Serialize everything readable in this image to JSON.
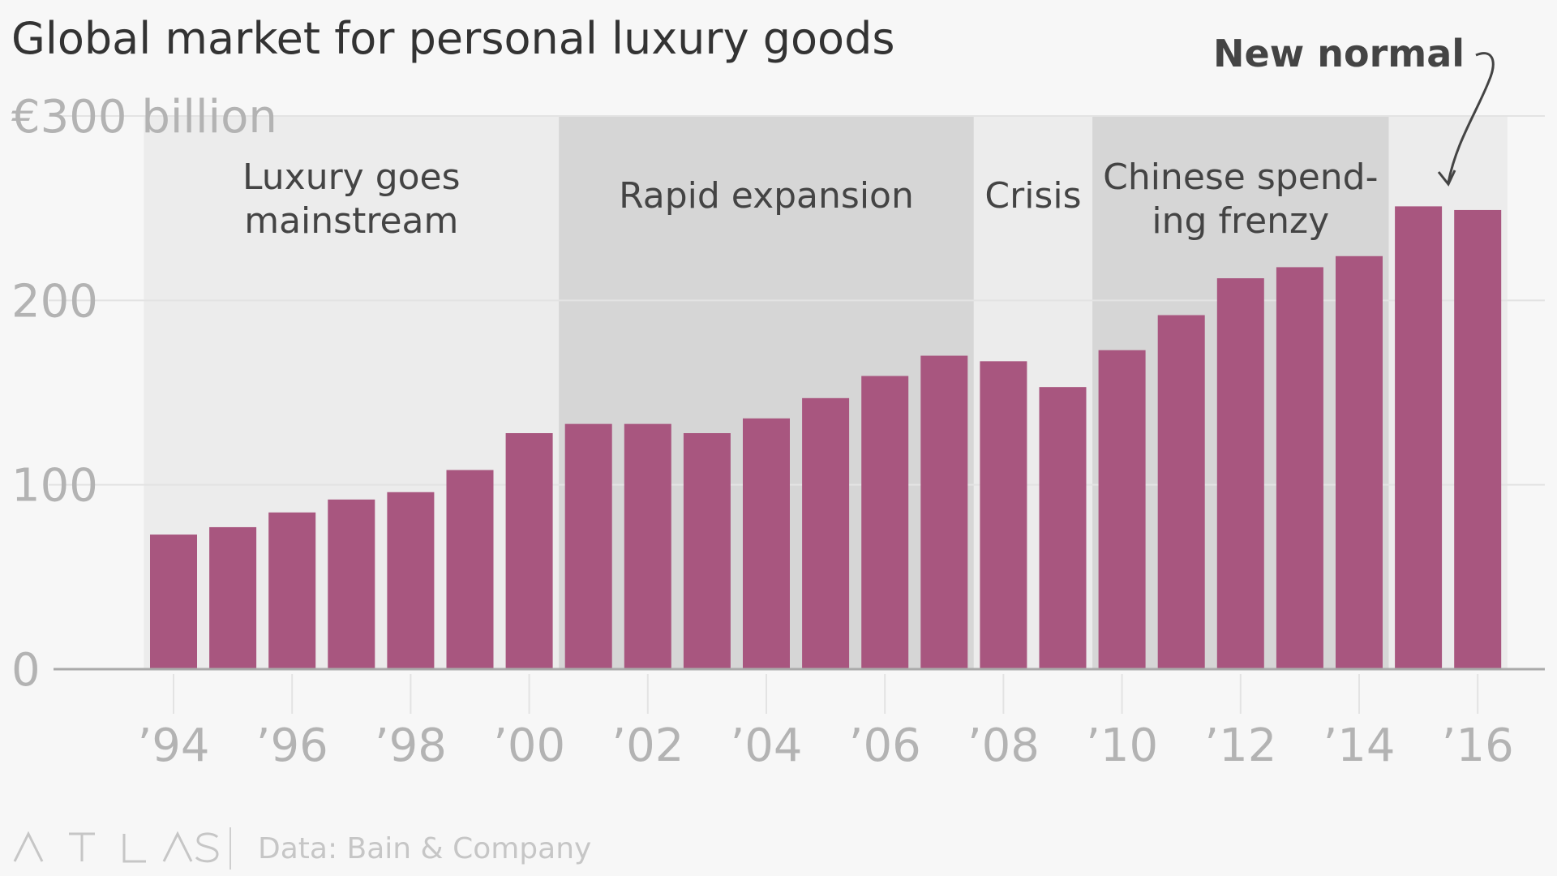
{
  "chart_data": {
    "type": "bar",
    "title": "Global market for personal luxury goods",
    "y_unit_label": "€300 billion",
    "ylim": [
      0,
      300
    ],
    "y_ticks": [
      0,
      100,
      200
    ],
    "y_tick_labels": [
      "0",
      "100",
      "200"
    ],
    "categories": [
      "1994",
      "1995",
      "1996",
      "1997",
      "1998",
      "1999",
      "2000",
      "2001",
      "2002",
      "2003",
      "2004",
      "2005",
      "2006",
      "2007",
      "2008",
      "2009",
      "2010",
      "2011",
      "2012",
      "2013",
      "2014",
      "2015",
      "2016"
    ],
    "x_tick_labels": [
      "’94",
      "’96",
      "’98",
      "’00",
      "’02",
      "’04",
      "’06",
      "’08",
      "’10",
      "’12",
      "’14",
      "’16"
    ],
    "values": [
      73,
      77,
      85,
      92,
      96,
      108,
      128,
      133,
      133,
      128,
      136,
      147,
      159,
      170,
      167,
      153,
      173,
      192,
      212,
      218,
      224,
      251,
      249
    ],
    "bar_color": "#a8567f",
    "grid": true,
    "bands": [
      {
        "start": "1994",
        "end": "2000",
        "lines": [
          "Luxury goes",
          "mainstream"
        ],
        "shade": "#ececec"
      },
      {
        "start": "2001",
        "end": "2007",
        "lines": [
          "Rapid expansion"
        ],
        "shade": "#d6d6d6"
      },
      {
        "start": "2008",
        "end": "2009",
        "lines": [
          "Crisis"
        ],
        "shade": "#ececec"
      },
      {
        "start": "2010",
        "end": "2014",
        "lines": [
          "Chinese spend-",
          "ing frenzy"
        ],
        "shade": "#d6d6d6"
      },
      {
        "start": "2015",
        "end": "2016",
        "lines": [],
        "shade": "#ececec"
      }
    ],
    "annotation": {
      "text": "New normal",
      "target": "2016"
    }
  },
  "footer": {
    "logo": "ATLAS",
    "source": "Data: Bain & Company"
  }
}
